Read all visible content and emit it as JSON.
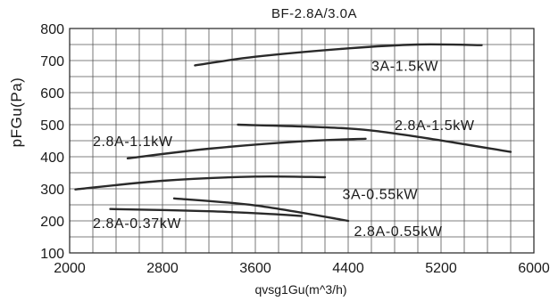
{
  "chart_data": {
    "type": "line",
    "title": "BF-2.8A/3.0A",
    "xlabel": "qvsg1Gu(m^3/h)",
    "ylabel": "pFGu(Pa)",
    "xlim": [
      2000,
      6000
    ],
    "ylim": [
      100,
      800
    ],
    "x_ticks": [
      2000,
      2800,
      3600,
      4400,
      5200,
      6000
    ],
    "y_ticks": [
      100,
      200,
      300,
      400,
      500,
      600,
      700,
      800
    ],
    "grid": true,
    "series": [
      {
        "name": "3A-1.5kW",
        "points": [
          [
            3080,
            685
          ],
          [
            3600,
            712
          ],
          [
            4400,
            738
          ],
          [
            5000,
            750
          ],
          [
            5550,
            748
          ]
        ]
      },
      {
        "name": "2.8A-1.5kW",
        "points": [
          [
            3450,
            500
          ],
          [
            4400,
            488
          ],
          [
            5000,
            462
          ],
          [
            5800,
            415
          ]
        ]
      },
      {
        "name": "2.8A-1.1kW",
        "points": [
          [
            2500,
            395
          ],
          [
            3200,
            425
          ],
          [
            4000,
            448
          ],
          [
            4550,
            456
          ]
        ]
      },
      {
        "name": "3A-0.55kW",
        "points": [
          [
            2050,
            298
          ],
          [
            2800,
            325
          ],
          [
            3600,
            338
          ],
          [
            4200,
            336
          ]
        ]
      },
      {
        "name": "2.8A-0.55kW",
        "points": [
          [
            2900,
            270
          ],
          [
            3600,
            248
          ],
          [
            4400,
            200
          ]
        ]
      },
      {
        "name": "2.8A-0.37kW",
        "points": [
          [
            2350,
            237
          ],
          [
            3200,
            230
          ],
          [
            3800,
            220
          ],
          [
            4000,
            215
          ]
        ]
      }
    ],
    "annotations": [
      {
        "text": "3A-1.5kW",
        "x": 4600,
        "y": 685
      },
      {
        "text": "2.8A-1.5kW",
        "x": 4800,
        "y": 500
      },
      {
        "text": "2.8A-1.1kW",
        "x": 2200,
        "y": 450
      },
      {
        "text": "3A-0.55kW",
        "x": 4350,
        "y": 285
      },
      {
        "text": "2.8A-0.55kW",
        "x": 4450,
        "y": 170
      },
      {
        "text": "2.8A-0.37kW",
        "x": 2200,
        "y": 195
      }
    ]
  }
}
